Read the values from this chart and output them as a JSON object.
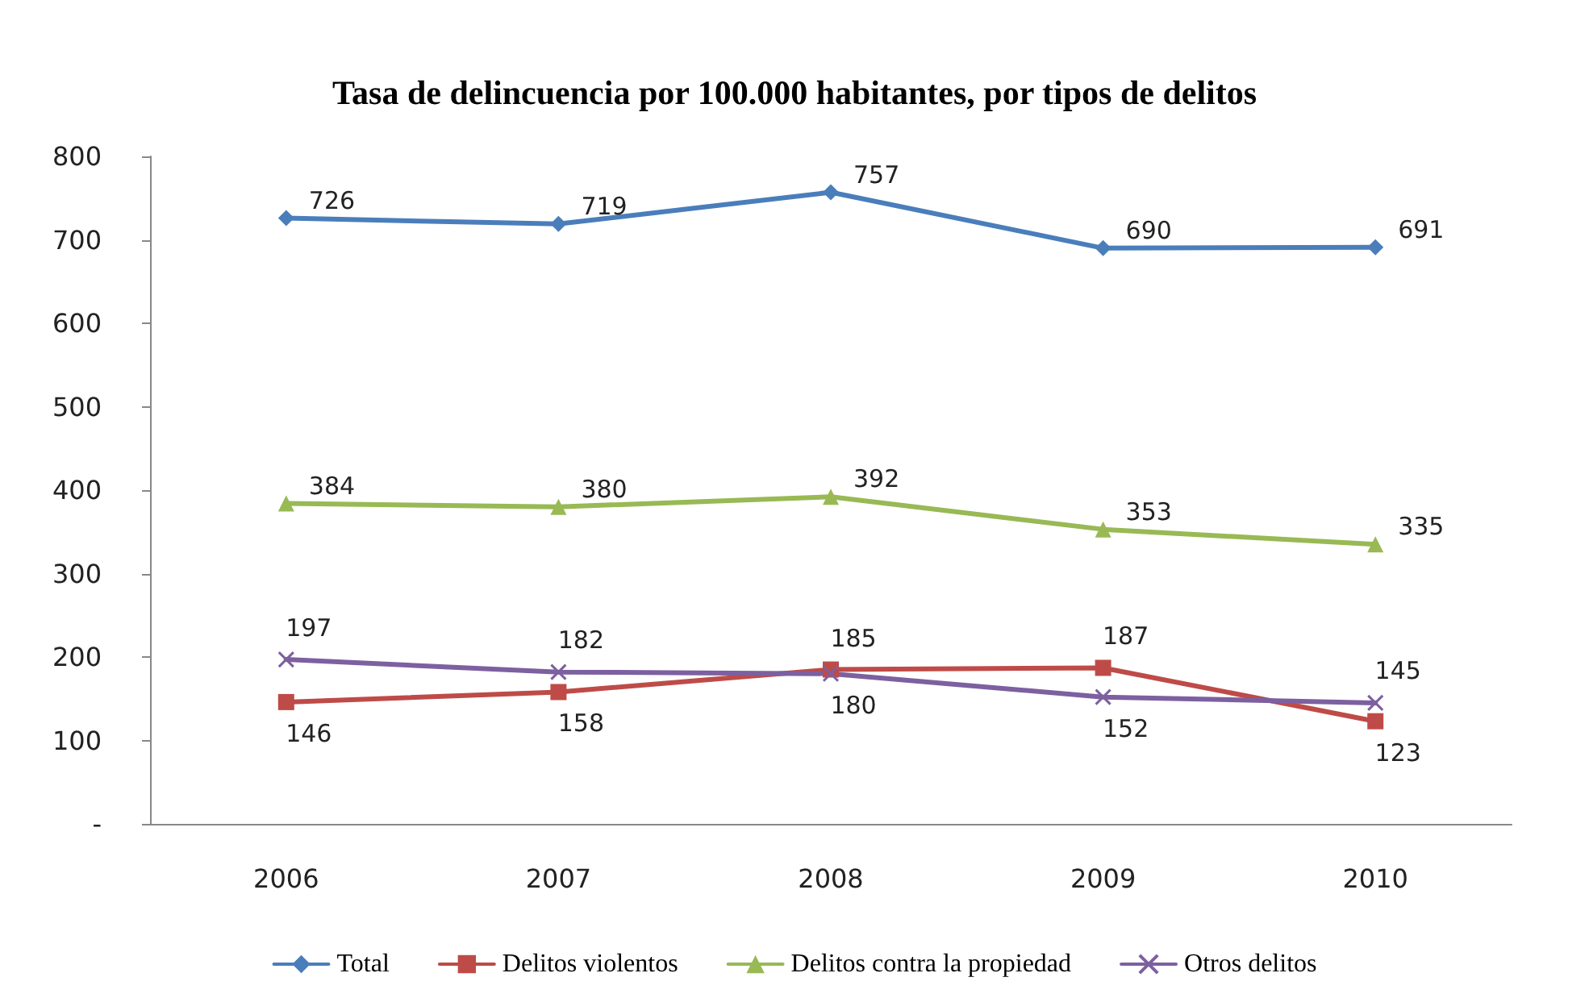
{
  "chart_data": {
    "type": "line",
    "title": "Tasa de delincuencia por 100.000 habitantes, por tipos de delitos",
    "categories": [
      "2006",
      "2007",
      "2008",
      "2009",
      "2010"
    ],
    "series": [
      {
        "name": "Total",
        "color": "#4a7ebb",
        "marker": "diamond",
        "values": [
          726,
          719,
          757,
          690,
          691
        ]
      },
      {
        "name": "Delitos violentos",
        "color": "#be4b48",
        "marker": "square",
        "values": [
          146,
          158,
          185,
          187,
          123
        ]
      },
      {
        "name": "Delitos contra la propiedad",
        "color": "#98b954",
        "marker": "triangle",
        "values": [
          384,
          380,
          392,
          353,
          335
        ]
      },
      {
        "name": "Otros delitos",
        "color": "#7d60a0",
        "marker": "cross",
        "values": [
          197,
          182,
          180,
          152,
          145
        ]
      }
    ],
    "ylim": [
      0,
      800
    ],
    "yticks": [
      {
        "value": 0,
        "label": "-"
      },
      100,
      200,
      300,
      400,
      500,
      600,
      700,
      800
    ],
    "grid": false,
    "legend": "bottom",
    "data_labels": true,
    "line_style": "solid"
  }
}
